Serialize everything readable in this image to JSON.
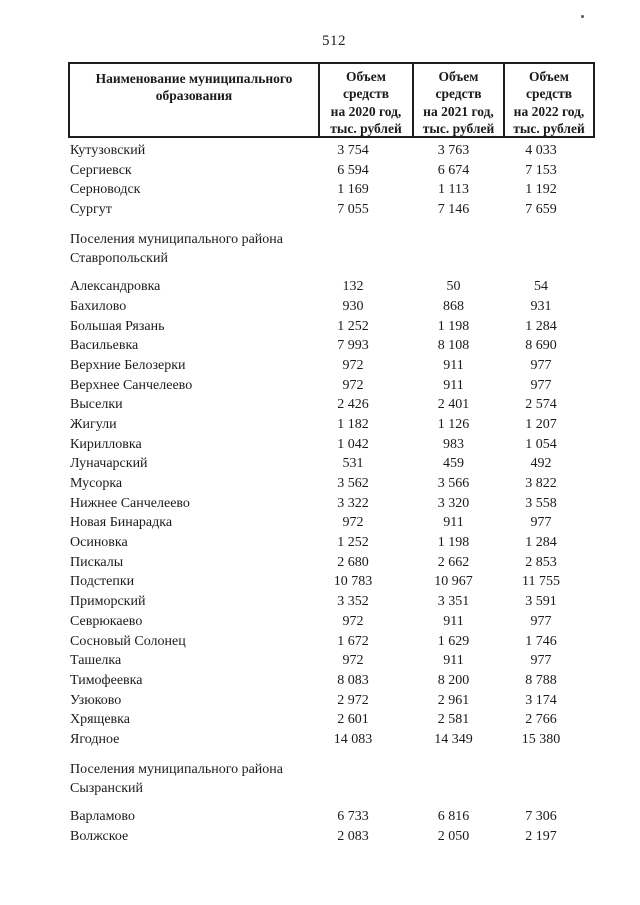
{
  "page": {
    "number": "512"
  },
  "table": {
    "years": [
      "2020",
      "2021",
      "2022"
    ],
    "columns": [
      "Наименование муниципального\nобразования",
      "Объем\nсредств\nна 2020 год,\nтыс. рублей",
      "Объем\nсредств\nна 2021 год,\nтыс. рублей",
      "Объем\nсредств\nна 2022 год,\nтыс. рублей"
    ],
    "rows": [
      {
        "type": "data",
        "name": "Кутузовский",
        "values": [
          "3 754",
          "3 763",
          "4 033"
        ]
      },
      {
        "type": "data",
        "name": "Сергиевск",
        "values": [
          "6 594",
          "6 674",
          "7 153"
        ]
      },
      {
        "type": "data",
        "name": "Серноводск",
        "values": [
          "1 169",
          "1 113",
          "1 192"
        ]
      },
      {
        "type": "data",
        "name": "Сургут",
        "values": [
          "7 055",
          "7 146",
          "7 659"
        ]
      },
      {
        "type": "section",
        "label": "Поселения муниципального района\nСтавропольский"
      },
      {
        "type": "data",
        "name": "Александровка",
        "values": [
          "132",
          "50",
          "54"
        ]
      },
      {
        "type": "data",
        "name": "Бахилово",
        "values": [
          "930",
          "868",
          "931"
        ]
      },
      {
        "type": "data",
        "name": "Большая Рязань",
        "values": [
          "1 252",
          "1 198",
          "1 284"
        ]
      },
      {
        "type": "data",
        "name": "Васильевка",
        "values": [
          "7 993",
          "8 108",
          "8 690"
        ]
      },
      {
        "type": "data",
        "name": "Верхние Белозерки",
        "values": [
          "972",
          "911",
          "977"
        ]
      },
      {
        "type": "data",
        "name": "Верхнее Санчелеево",
        "values": [
          "972",
          "911",
          "977"
        ]
      },
      {
        "type": "data",
        "name": "Выселки",
        "values": [
          "2 426",
          "2 401",
          "2 574"
        ]
      },
      {
        "type": "data",
        "name": "Жигули",
        "values": [
          "1 182",
          "1 126",
          "1 207"
        ]
      },
      {
        "type": "data",
        "name": "Кирилловка",
        "values": [
          "1 042",
          "983",
          "1 054"
        ]
      },
      {
        "type": "data",
        "name": "Луначарский",
        "values": [
          "531",
          "459",
          "492"
        ]
      },
      {
        "type": "data",
        "name": "Мусорка",
        "values": [
          "3 562",
          "3 566",
          "3 822"
        ]
      },
      {
        "type": "data",
        "name": "Нижнее Санчелеево",
        "values": [
          "3 322",
          "3 320",
          "3 558"
        ]
      },
      {
        "type": "data",
        "name": "Новая Бинарадка",
        "values": [
          "972",
          "911",
          "977"
        ]
      },
      {
        "type": "data",
        "name": "Осиновка",
        "values": [
          "1 252",
          "1 198",
          "1 284"
        ]
      },
      {
        "type": "data",
        "name": "Пискалы",
        "values": [
          "2 680",
          "2 662",
          "2 853"
        ]
      },
      {
        "type": "data",
        "name": "Подстепки",
        "values": [
          "10 783",
          "10 967",
          "11 755"
        ]
      },
      {
        "type": "data",
        "name": "Приморский",
        "values": [
          "3 352",
          "3 351",
          "3 591"
        ]
      },
      {
        "type": "data",
        "name": "Севрюкаево",
        "values": [
          "972",
          "911",
          "977"
        ]
      },
      {
        "type": "data",
        "name": "Сосновый Солонец",
        "values": [
          "1 672",
          "1 629",
          "1 746"
        ]
      },
      {
        "type": "data",
        "name": "Ташелка",
        "values": [
          "972",
          "911",
          "977"
        ]
      },
      {
        "type": "data",
        "name": "Тимофеевка",
        "values": [
          "8 083",
          "8 200",
          "8 788"
        ]
      },
      {
        "type": "data",
        "name": "Узюково",
        "values": [
          "2 972",
          "2 961",
          "3 174"
        ]
      },
      {
        "type": "data",
        "name": "Хрящевка",
        "values": [
          "2 601",
          "2 581",
          "2 766"
        ]
      },
      {
        "type": "data",
        "name": "Ягодное",
        "values": [
          "14 083",
          "14 349",
          "15 380"
        ]
      },
      {
        "type": "section",
        "label": "Поселения муниципального района\nСызранский"
      },
      {
        "type": "data",
        "name": "Варламово",
        "values": [
          "6 733",
          "6 816",
          "7 306"
        ]
      },
      {
        "type": "data",
        "name": "Волжское",
        "values": [
          "2 083",
          "2 050",
          "2 197"
        ]
      }
    ]
  }
}
